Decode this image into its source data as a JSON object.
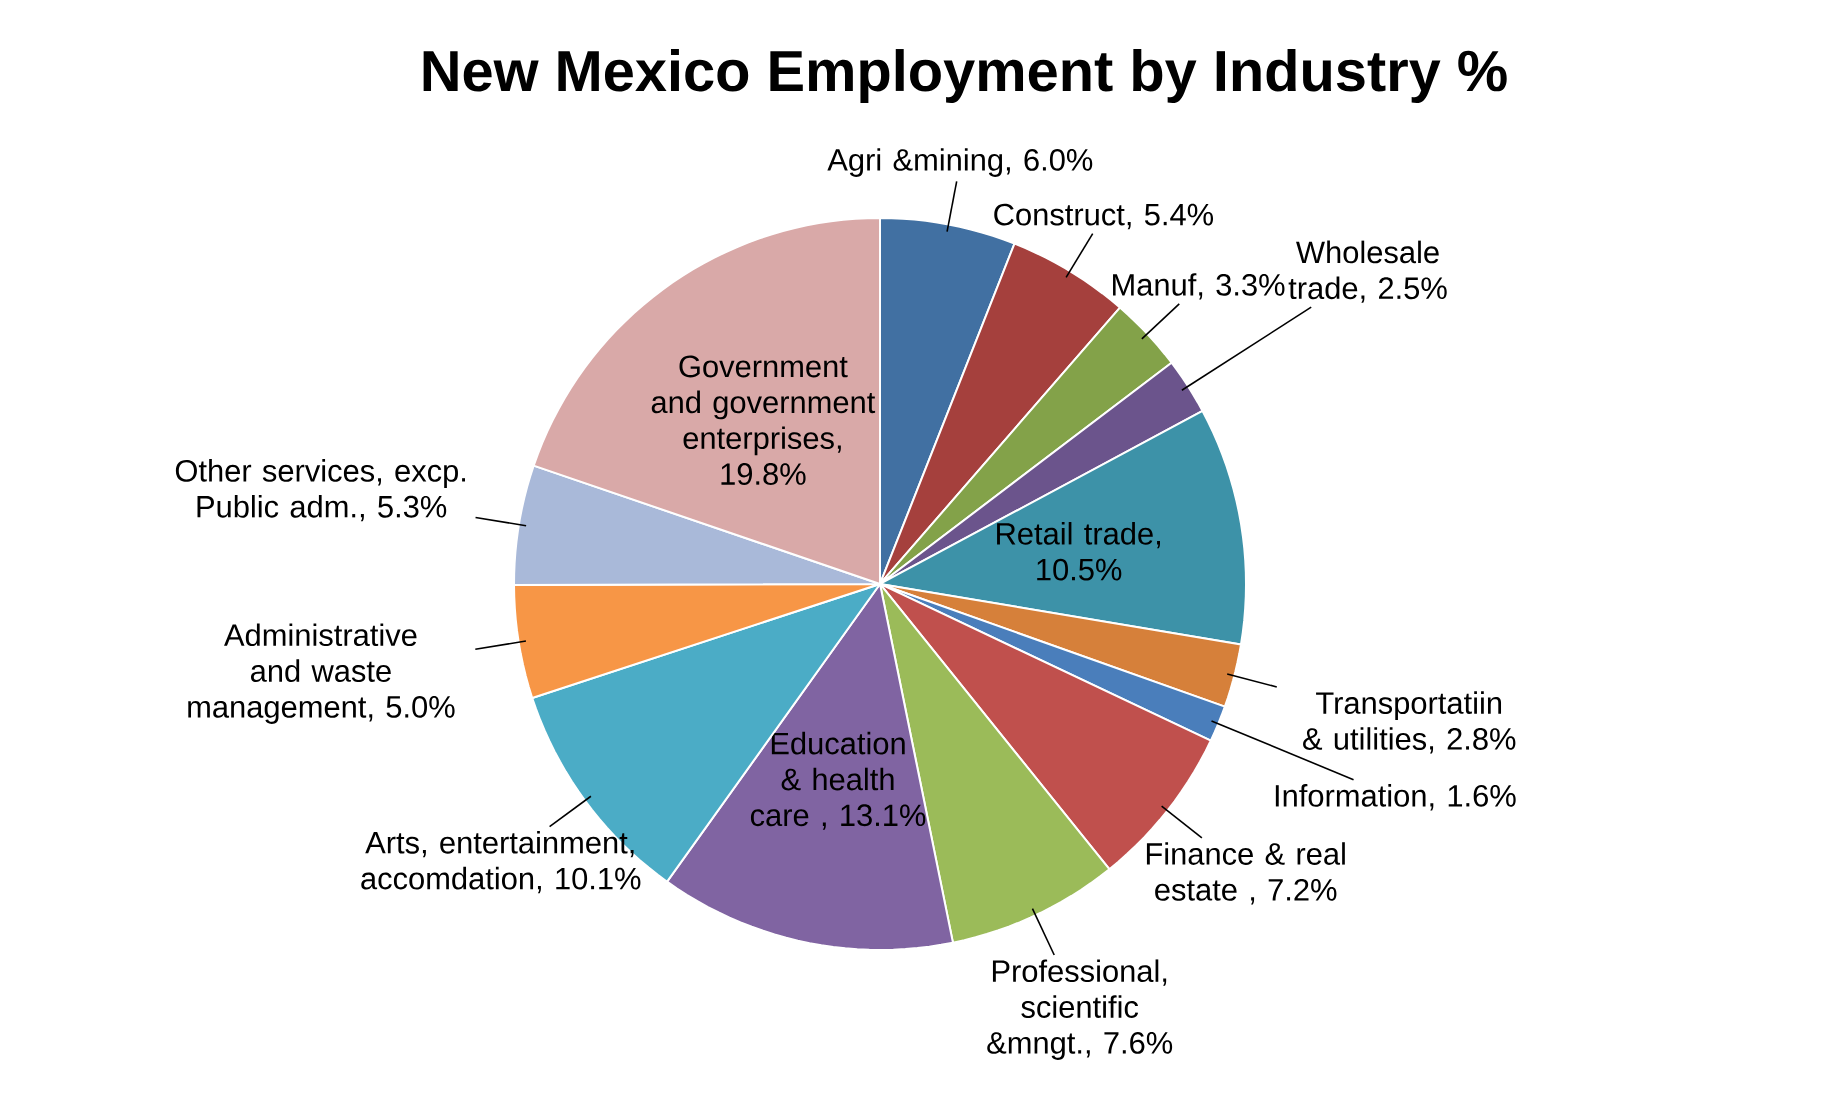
{
  "chart_data": {
    "type": "pie",
    "title": "New Mexico Employment by Industry %",
    "categories": [
      "Agri &mining",
      "Construct",
      "Manuf",
      "Wholesale trade",
      "Retail trade",
      "Transportatiin & utilities",
      "Information",
      "Finance & real estate ",
      "Professional, scientific &mngt.",
      "Education & health care ",
      "Arts, entertainment, accomdation",
      "Administrative and waste management",
      "Other services, excp. Public adm.",
      "Government and government enterprises"
    ],
    "values": [
      6.0,
      5.4,
      3.3,
      2.5,
      10.5,
      2.8,
      1.6,
      7.2,
      7.6,
      13.1,
      10.1,
      5.0,
      5.3,
      19.8
    ],
    "value_labels": [
      ", 6.0%",
      ", 5.4%",
      ", 3.3%",
      ", 2.5%",
      ", 10.5%",
      ", 2.8%",
      ", 1.6%",
      ", 7.2%",
      ", 7.6%",
      ", 13.1%",
      ", 10.1%",
      ", 5.0%",
      ", 5.3%",
      ", 19.8%"
    ],
    "colors": [
      "#4170a2",
      "#a5403d",
      "#83a249",
      "#6b548c",
      "#3d92a8",
      "#d6803a",
      "#4a7ebb",
      "#c0504d",
      "#9bbb59",
      "#8064a2",
      "#4bacc6",
      "#f79646",
      "#a9b9d9",
      "#d9a9a8"
    ]
  }
}
